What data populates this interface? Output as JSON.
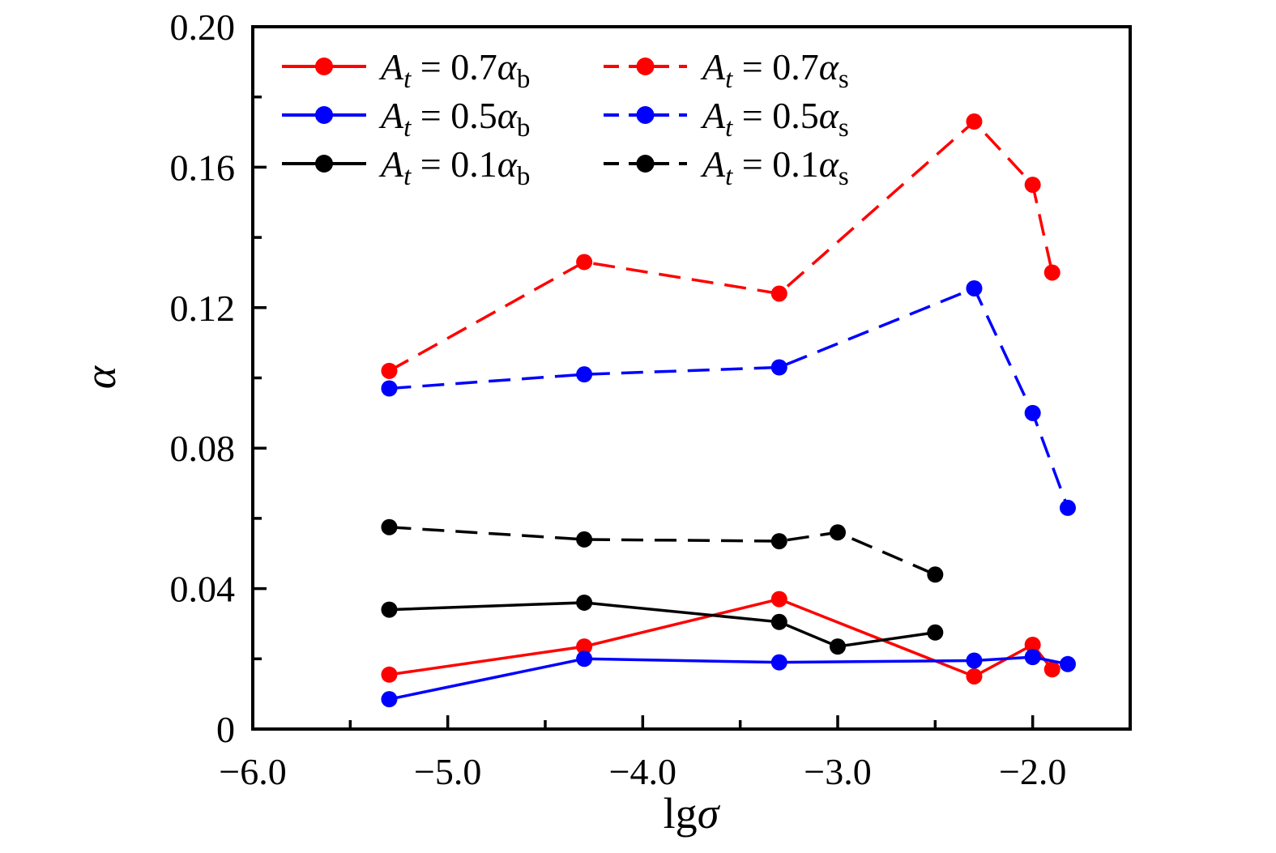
{
  "chart_data": {
    "type": "line",
    "title": "",
    "xlabel_prefix": "lg",
    "xlabel_symbol": "σ",
    "ylabel": "α",
    "xlim": [
      -6.0,
      -1.5
    ],
    "ylim": [
      0,
      0.2
    ],
    "grid": false,
    "legend_position": "top-left",
    "x_major_ticks": [
      -6.0,
      -5.0,
      -4.0,
      -3.0,
      -2.0
    ],
    "x_tick_labels": [
      "−6.0",
      "−5.0",
      "−4.0",
      "−3.0",
      "−2.0"
    ],
    "x_minor_ticks": [
      -5.5,
      -4.5,
      -3.5,
      -2.5
    ],
    "y_major_ticks": [
      0,
      0.04,
      0.08,
      0.12,
      0.16,
      0.2
    ],
    "y_tick_labels": [
      "0",
      "0.04",
      "0.08",
      "0.12",
      "0.16",
      "0.20"
    ],
    "y_minor_ticks": [
      0.02,
      0.06,
      0.1,
      0.14,
      0.18
    ],
    "colors": {
      "red": "#ff0000",
      "blue": "#0000ff",
      "black": "#000000"
    },
    "series": [
      {
        "id": "at-0p7-alpha-b",
        "legend": {
          "A": "A",
          "A_sub": "t",
          "eq": " = 0.7",
          "alpha": "α",
          "alpha_sub": "b"
        },
        "color": "#ff0000",
        "line_style": "solid",
        "marker": "circle",
        "x": [
          -5.3,
          -4.3,
          -3.3,
          -2.3,
          -2.0,
          -1.9
        ],
        "y": [
          0.0155,
          0.0235,
          0.037,
          0.015,
          0.024,
          0.017
        ]
      },
      {
        "id": "at-0p5-alpha-b",
        "legend": {
          "A": "A",
          "A_sub": "t",
          "eq": " = 0.5",
          "alpha": "α",
          "alpha_sub": "b"
        },
        "color": "#0000ff",
        "line_style": "solid",
        "marker": "circle",
        "x": [
          -5.3,
          -4.3,
          -3.3,
          -2.3,
          -2.0,
          -1.82
        ],
        "y": [
          0.0085,
          0.02,
          0.019,
          0.0195,
          0.0205,
          0.0185
        ]
      },
      {
        "id": "at-0p1-alpha-b",
        "legend": {
          "A": "A",
          "A_sub": "t",
          "eq": " = 0.1",
          "alpha": "α",
          "alpha_sub": "b"
        },
        "color": "#000000",
        "line_style": "solid",
        "marker": "circle",
        "x": [
          -5.3,
          -4.3,
          -3.3,
          -3.0,
          -2.5
        ],
        "y": [
          0.034,
          0.036,
          0.0305,
          0.0235,
          0.0275
        ]
      },
      {
        "id": "at-0p7-alpha-s",
        "legend": {
          "A": "A",
          "A_sub": "t",
          "eq": " = 0.7",
          "alpha": "α",
          "alpha_sub": "s"
        },
        "color": "#ff0000",
        "line_style": "dashed",
        "marker": "circle",
        "x": [
          -5.3,
          -4.3,
          -3.3,
          -2.3,
          -2.0,
          -1.9
        ],
        "y": [
          0.102,
          0.133,
          0.124,
          0.173,
          0.155,
          0.13
        ]
      },
      {
        "id": "at-0p5-alpha-s",
        "legend": {
          "A": "A",
          "A_sub": "t",
          "eq": " = 0.5",
          "alpha": "α",
          "alpha_sub": "s"
        },
        "color": "#0000ff",
        "line_style": "dashed",
        "marker": "circle",
        "x": [
          -5.3,
          -4.3,
          -3.3,
          -2.3,
          -2.0,
          -1.82
        ],
        "y": [
          0.097,
          0.101,
          0.103,
          0.1255,
          0.09,
          0.063
        ]
      },
      {
        "id": "at-0p1-alpha-s",
        "legend": {
          "A": "A",
          "A_sub": "t",
          "eq": " = 0.1",
          "alpha": "α",
          "alpha_sub": "s"
        },
        "color": "#000000",
        "line_style": "dashed",
        "marker": "circle",
        "x": [
          -5.3,
          -4.3,
          -3.3,
          -3.0,
          -2.5
        ],
        "y": [
          0.0575,
          0.054,
          0.0535,
          0.056,
          0.044
        ]
      }
    ]
  }
}
